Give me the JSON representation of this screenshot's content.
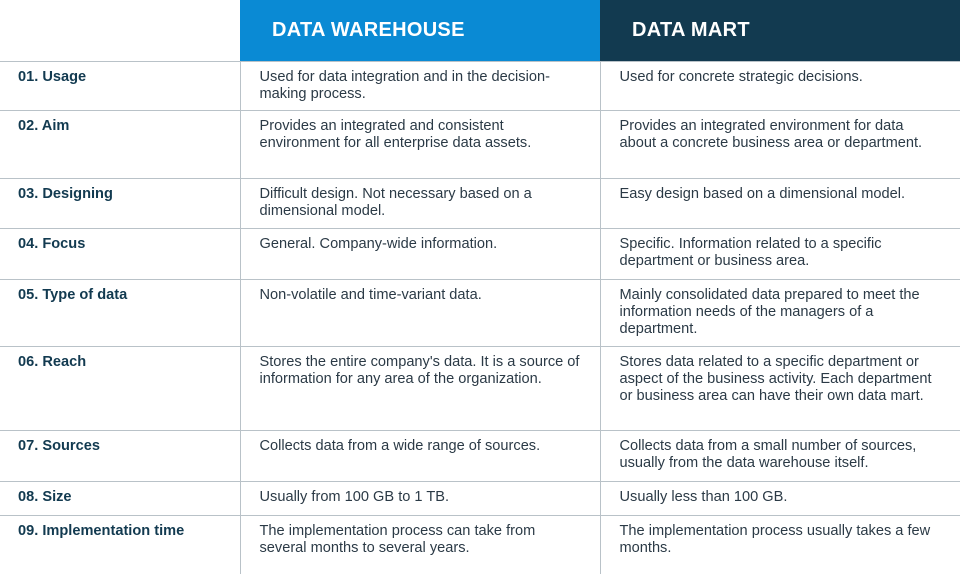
{
  "table": {
    "headers": [
      "DATA WAREHOUSE",
      "DATA MART"
    ],
    "rows": [
      [
        "01. Usage",
        "Used for data integration and in the decision-making process.",
        "Used for concrete strategic decisions."
      ],
      [
        "02. Aim",
        "Provides an integrated and consistent environment for all enterprise data assets.",
        "Provides an integrated environment for data about a concrete business area or department."
      ],
      [
        "03. Designing",
        "Difficult design. Not necessary based on a dimensional model.",
        "Easy design based on a dimensional model."
      ],
      [
        "04. Focus",
        "General. Company-wide information.",
        "Specific. Information related to a specific department or business area."
      ],
      [
        "05. Type of data",
        "Non-volatile and time-variant data.",
        "Mainly consolidated data prepared to meet the information needs of the managers of a department."
      ],
      [
        "06. Reach",
        "Stores the entire company's data. It is a source of information for any area of the organization.",
        "Stores data related to a specific department or aspect of the business activity. Each department or business area can have their own data mart."
      ],
      [
        "07. Sources",
        "Collects data from a wide range of sources.",
        "Collects data from a small number of sources, usually from the data warehouse itself."
      ],
      [
        "08. Size",
        "Usually from 100 GB to 1 TB.",
        "Usually less than 100 GB."
      ],
      [
        "09. Implementation time",
        "The implementation process can take from several months to several years.",
        "The implementation process usually takes a few months."
      ]
    ]
  }
}
